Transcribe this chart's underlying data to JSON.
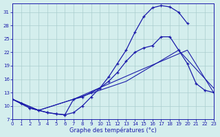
{
  "xlabel": "Graphe des températures (°c)",
  "bg_color": "#d4eeed",
  "line_color": "#1a1aaa",
  "grid_color": "#aacece",
  "xlim": [
    0,
    23
  ],
  "ylim": [
    7,
    33
  ],
  "xticks": [
    0,
    1,
    2,
    3,
    4,
    5,
    6,
    7,
    8,
    9,
    10,
    11,
    12,
    13,
    14,
    15,
    16,
    17,
    18,
    19,
    20,
    21,
    22,
    23
  ],
  "yticks": [
    7,
    10,
    13,
    16,
    19,
    22,
    25,
    28,
    31
  ],
  "curve1_x": [
    0,
    1,
    2,
    3,
    4,
    5,
    6,
    7,
    8,
    9,
    10,
    11,
    12,
    13,
    14,
    15,
    16,
    17,
    18,
    19,
    20
  ],
  "curve1_y": [
    11.5,
    10.5,
    9.5,
    9.0,
    8.5,
    8.2,
    8.0,
    8.5,
    10.0,
    12.0,
    14.0,
    16.5,
    19.5,
    22.5,
    26.5,
    30.0,
    32.0,
    32.5,
    32.2,
    31.0,
    28.5
  ],
  "curve2_x": [
    0,
    1,
    2,
    3,
    4,
    5,
    6,
    7,
    8,
    9,
    10,
    11,
    12,
    13,
    14,
    15,
    16,
    17,
    18,
    19,
    20,
    21,
    22,
    23
  ],
  "curve2_y": [
    11.5,
    10.5,
    9.5,
    9.0,
    8.5,
    8.2,
    8.0,
    11.5,
    12.0,
    13.0,
    14.0,
    15.5,
    17.5,
    20.0,
    22.0,
    23.0,
    23.5,
    25.5,
    25.5,
    22.5,
    19.5,
    15.0,
    13.5,
    13.0
  ],
  "diag1_x": [
    0,
    3,
    7,
    13,
    19,
    23
  ],
  "diag1_y": [
    11.5,
    9.0,
    11.5,
    15.5,
    22.5,
    14.0
  ],
  "diag2_x": [
    0,
    3,
    7,
    14,
    20,
    23
  ],
  "diag2_y": [
    11.5,
    9.0,
    11.5,
    17.5,
    22.5,
    13.0
  ]
}
